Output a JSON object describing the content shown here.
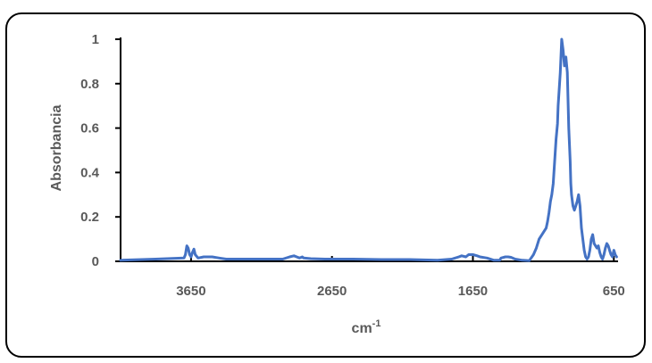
{
  "chart_data": {
    "type": "line",
    "title": "",
    "xlabel": "cm",
    "xlabel_superscript": "-1",
    "ylabel": "Absorbancia",
    "x_reversed": true,
    "xlim": [
      4150,
      620
    ],
    "ylim": [
      0,
      1
    ],
    "x_ticks": [
      3650,
      2650,
      1650,
      650
    ],
    "x_tick_labels": [
      "3650",
      "2650",
      "1650",
      "650"
    ],
    "y_ticks": [
      0,
      0.2,
      0.4,
      0.6,
      0.8,
      1
    ],
    "y_tick_labels": [
      "0",
      "0.2",
      "0.4",
      "0.6",
      "0.8",
      "1"
    ],
    "grid": false,
    "legend": "none",
    "line_color": "#4472C4",
    "series": [
      {
        "x": [
          4150,
          3900,
          3700,
          3690,
          3680,
          3670,
          3660,
          3650,
          3640,
          3630,
          3620,
          3600,
          3560,
          3500,
          3450,
          3400,
          3300,
          3000,
          2950,
          2920,
          2900,
          2880,
          2860,
          2850,
          2800,
          2700,
          2500,
          2300,
          2100,
          1900,
          1800,
          1750,
          1730,
          1700,
          1680,
          1650,
          1620,
          1600,
          1550,
          1500,
          1460,
          1450,
          1420,
          1400,
          1380,
          1350,
          1300,
          1250,
          1220,
          1200,
          1180,
          1150,
          1130,
          1120,
          1110,
          1100,
          1090,
          1080,
          1070,
          1060,
          1050,
          1045,
          1040,
          1030,
          1020,
          1010,
          1000,
          990,
          980,
          970,
          960,
          955,
          950,
          940,
          930,
          920,
          910,
          900,
          890,
          880,
          860,
          850,
          840,
          830,
          820,
          810,
          800,
          790,
          770,
          760,
          750,
          740,
          730,
          720,
          710,
          700,
          690,
          680,
          670,
          660,
          650,
          640,
          630
        ],
        "y": [
          0.005,
          0.01,
          0.015,
          0.03,
          0.07,
          0.06,
          0.03,
          0.02,
          0.04,
          0.055,
          0.03,
          0.015,
          0.02,
          0.02,
          0.015,
          0.01,
          0.01,
          0.01,
          0.02,
          0.025,
          0.02,
          0.015,
          0.02,
          0.015,
          0.012,
          0.01,
          0.01,
          0.008,
          0.008,
          0.005,
          0.01,
          0.02,
          0.025,
          0.02,
          0.03,
          0.03,
          0.025,
          0.02,
          0.015,
          0.005,
          0.005,
          0.015,
          0.02,
          0.02,
          0.018,
          0.01,
          0.005,
          0.003,
          0.03,
          0.06,
          0.1,
          0.13,
          0.15,
          0.18,
          0.22,
          0.27,
          0.3,
          0.35,
          0.45,
          0.55,
          0.62,
          0.7,
          0.75,
          0.85,
          1.0,
          0.95,
          0.88,
          0.92,
          0.85,
          0.6,
          0.45,
          0.35,
          0.3,
          0.25,
          0.23,
          0.25,
          0.27,
          0.3,
          0.25,
          0.15,
          0.05,
          0.02,
          0.01,
          0.02,
          0.05,
          0.1,
          0.12,
          0.08,
          0.06,
          0.07,
          0.04,
          0.02,
          0.01,
          0.03,
          0.06,
          0.08,
          0.07,
          0.05,
          0.03,
          0.02,
          0.05,
          0.03,
          0.02
        ]
      }
    ]
  }
}
